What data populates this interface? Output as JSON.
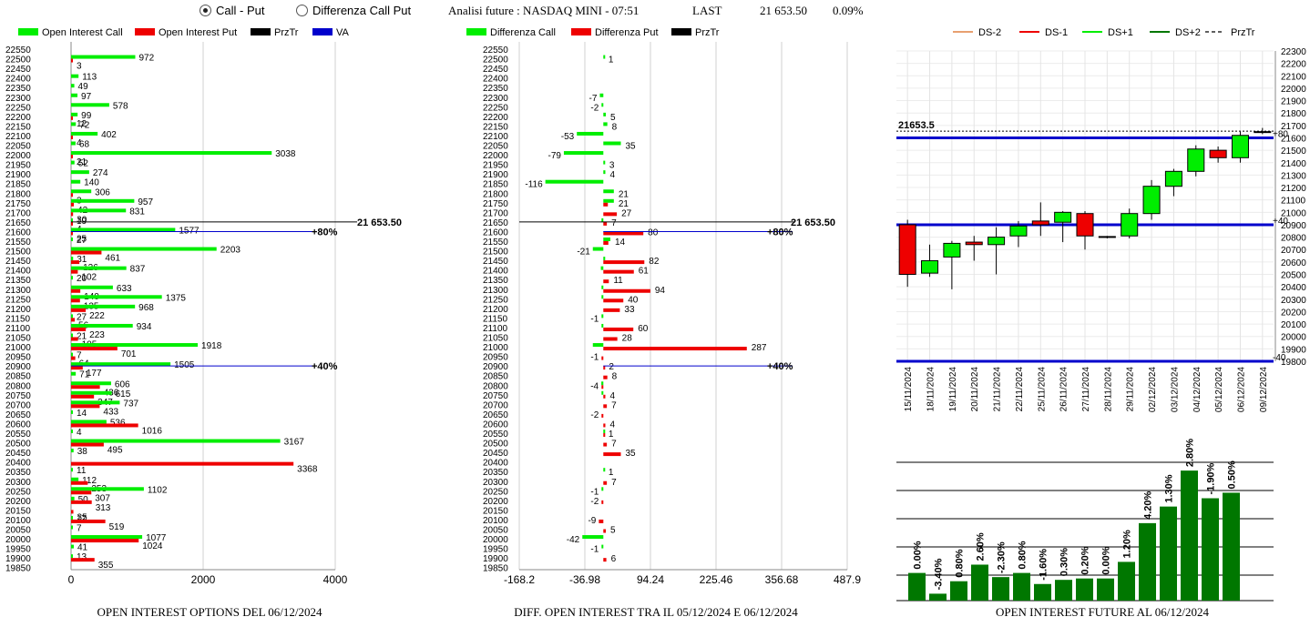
{
  "header": {
    "options": [
      {
        "label": "Call - Put",
        "selected": true
      },
      {
        "label": "Differenza Call Put",
        "selected": false
      }
    ],
    "title": "Analisi future : NASDAQ MINI - 07:51",
    "last_label": "LAST",
    "last_value": "21 653.50",
    "change": "0.09%"
  },
  "colors": {
    "call": "#00ee00",
    "put": "#ee0000",
    "prztr": "#000000",
    "va": "#0000cc",
    "dark_green": "#007700"
  },
  "chart_data": [
    {
      "type": "bar",
      "title": "OPEN INTEREST OPTIONS DEL 06/12/2024",
      "orientation": "horizontal",
      "legend": [
        "Open Interest Call",
        "Open Interest Put",
        "PrzTr",
        "VA"
      ],
      "categories": [
        22550,
        22500,
        22450,
        22400,
        22350,
        22300,
        22250,
        22200,
        22150,
        22100,
        22050,
        22000,
        21950,
        21900,
        21850,
        21800,
        21750,
        21700,
        21650,
        21600,
        21550,
        21500,
        21450,
        21400,
        21350,
        21300,
        21250,
        21200,
        21150,
        21100,
        21050,
        21000,
        20950,
        20900,
        20850,
        20800,
        20750,
        20700,
        20650,
        20600,
        20550,
        20500,
        20450,
        20400,
        20350,
        20300,
        20250,
        20200,
        20150,
        20100,
        20050,
        20000,
        19950,
        19900,
        19850
      ],
      "series": [
        {
          "name": "Open Interest Call",
          "values": [
            null,
            972,
            null,
            113,
            49,
            97,
            578,
            99,
            72,
            402,
            68,
            3038,
            52,
            274,
            140,
            306,
            957,
            831,
            19,
            1577,
            27,
            2203,
            31,
            837,
            20,
            633,
            1375,
            968,
            27,
            934,
            21,
            1918,
            7,
            1505,
            71,
            606,
            615,
            737,
            14,
            536,
            4,
            3167,
            38,
            null,
            11,
            112,
            1102,
            50,
            null,
            17,
            7,
            1077,
            41,
            13,
            null
          ]
        },
        {
          "name": "Open Interest Put",
          "values": [
            null,
            3,
            null,
            null,
            null,
            null,
            null,
            12,
            null,
            4,
            null,
            21,
            null,
            null,
            null,
            3,
            42,
            30,
            4,
            25,
            null,
            461,
            126,
            102,
            null,
            140,
            135,
            222,
            56,
            223,
            105,
            701,
            64,
            177,
            null,
            436,
            347,
            433,
            null,
            1016,
            null,
            495,
            null,
            3368,
            null,
            253,
            307,
            313,
            35,
            519,
            null,
            1024,
            null,
            355,
            null
          ]
        }
      ],
      "price_line": {
        "value": 21650,
        "label": "21 653.50"
      },
      "va_lines": [
        {
          "value": 21600,
          "label": "+80%"
        },
        {
          "value": 20900,
          "label": "+40%"
        }
      ],
      "xticks": [
        "0",
        "2000",
        "4000"
      ],
      "xlim": [
        0,
        4000
      ]
    },
    {
      "type": "bar",
      "title": "DIFF. OPEN INTEREST TRA IL 05/12/2024 E 06/12/2024",
      "orientation": "horizontal",
      "legend": [
        "Differenza Call",
        "Differenza Put",
        "PrzTr"
      ],
      "categories": [
        22550,
        22500,
        22450,
        22400,
        22350,
        22300,
        22250,
        22200,
        22150,
        22100,
        22050,
        22000,
        21950,
        21900,
        21850,
        21800,
        21750,
        21700,
        21650,
        21600,
        21550,
        21500,
        21450,
        21400,
        21350,
        21300,
        21250,
        21200,
        21150,
        21100,
        21050,
        21000,
        20950,
        20900,
        20850,
        20800,
        20750,
        20700,
        20650,
        20600,
        20550,
        20500,
        20450,
        20400,
        20350,
        20300,
        20250,
        20200,
        20150,
        20100,
        20050,
        20000,
        19950,
        19900,
        19850
      ],
      "labels": [
        null,
        "1",
        null,
        null,
        null,
        "-7",
        "-2",
        "5",
        "8",
        "-53",
        "35",
        "-79",
        "3",
        "4",
        "-116",
        "21",
        "21",
        "27",
        "7",
        "80",
        "14",
        "-21",
        "82",
        "61",
        "11",
        "94",
        "40",
        "33",
        "-1",
        "60",
        "28",
        "287",
        "-1",
        "2",
        "8",
        "-4",
        "4",
        "7",
        "-2",
        "4",
        "1",
        "7",
        "35",
        null,
        "1",
        "7",
        "-1",
        "-2",
        null,
        "-9",
        "5",
        "-42",
        "-1",
        "6",
        null
      ],
      "series": [
        {
          "name": "Differenza Call",
          "values": [
            null,
            1,
            null,
            null,
            null,
            -7,
            -2,
            5,
            8,
            -53,
            35,
            -79,
            3,
            4,
            -116,
            21,
            21,
            null,
            -2,
            null,
            14,
            -21,
            1,
            -5,
            null,
            -2,
            -2,
            null,
            -1,
            -1,
            null,
            -21,
            null,
            null,
            null,
            -4,
            -1,
            null,
            null,
            null,
            1,
            null,
            null,
            null,
            1,
            null,
            -1,
            null,
            null,
            null,
            null,
            -42,
            -1,
            null,
            null
          ]
        },
        {
          "name": "Differenza Put",
          "values": [
            null,
            null,
            null,
            null,
            null,
            null,
            null,
            null,
            null,
            null,
            null,
            null,
            null,
            null,
            null,
            null,
            9,
            27,
            7,
            80,
            10,
            null,
            82,
            61,
            11,
            94,
            40,
            33,
            null,
            60,
            28,
            287,
            -1,
            2,
            8,
            -1,
            4,
            7,
            -2,
            4,
            1,
            7,
            35,
            null,
            null,
            7,
            null,
            -2,
            null,
            -9,
            5,
            null,
            null,
            6,
            null
          ]
        }
      ],
      "price_line": {
        "value": 21650,
        "label": "21 653.50"
      },
      "va_lines": [
        {
          "value": 21600,
          "label": "+80%"
        },
        {
          "value": 20900,
          "label": "+40%"
        }
      ],
      "xticks": [
        "-168.2",
        "-36.98",
        "94.24",
        "225.46",
        "356.68",
        "487.9"
      ],
      "xlim": [
        -168.2,
        487.9
      ]
    },
    {
      "type": "candlestick",
      "legend": [
        "DS-2",
        "DS-1",
        "DS+1",
        "DS+2",
        "PrzTr"
      ],
      "legend_colors": [
        "#e8a070",
        "#ee0000",
        "#00ee00",
        "#007700",
        "#000000"
      ],
      "dates": [
        "15/11/2024",
        "18/11/2024",
        "19/11/2024",
        "20/11/2024",
        "21/11/2024",
        "22/11/2024",
        "25/11/2024",
        "26/11/2024",
        "27/11/2024",
        "28/11/2024",
        "29/11/2024",
        "02/12/2024",
        "03/12/2024",
        "04/12/2024",
        "05/12/2024",
        "06/12/2024",
        "09/12/2024"
      ],
      "candles": [
        {
          "o": 20900,
          "h": 20940,
          "l": 20400,
          "c": 20500,
          "dir": "down"
        },
        {
          "o": 20510,
          "h": 20740,
          "l": 20480,
          "c": 20610,
          "dir": "up"
        },
        {
          "o": 20640,
          "h": 20770,
          "l": 20380,
          "c": 20750,
          "dir": "up"
        },
        {
          "o": 20760,
          "h": 20810,
          "l": 20610,
          "c": 20740,
          "dir": "down"
        },
        {
          "o": 20740,
          "h": 20880,
          "l": 20500,
          "c": 20800,
          "dir": "up"
        },
        {
          "o": 20810,
          "h": 20930,
          "l": 20720,
          "c": 20890,
          "dir": "up"
        },
        {
          "o": 20930,
          "h": 21080,
          "l": 20810,
          "c": 20900,
          "dir": "down"
        },
        {
          "o": 20920,
          "h": 21010,
          "l": 20760,
          "c": 21000,
          "dir": "up"
        },
        {
          "o": 20990,
          "h": 21010,
          "l": 20700,
          "c": 20810,
          "dir": "down"
        },
        {
          "o": 20800,
          "h": 20810,
          "l": 20790,
          "c": 20805,
          "dir": "flat"
        },
        {
          "o": 20810,
          "h": 21030,
          "l": 20790,
          "c": 20990,
          "dir": "up"
        },
        {
          "o": 20990,
          "h": 21260,
          "l": 20940,
          "c": 21210,
          "dir": "up"
        },
        {
          "o": 21210,
          "h": 21350,
          "l": 21130,
          "c": 21330,
          "dir": "up"
        },
        {
          "o": 21330,
          "h": 21540,
          "l": 21290,
          "c": 21510,
          "dir": "up"
        },
        {
          "o": 21500,
          "h": 21530,
          "l": 21400,
          "c": 21440,
          "dir": "down"
        },
        {
          "o": 21440,
          "h": 21650,
          "l": 21400,
          "c": 21620,
          "dir": "up"
        },
        {
          "o": 21650,
          "h": 21680,
          "l": 21630,
          "c": 21650,
          "dir": "flat"
        }
      ],
      "ylim": [
        19800,
        22300
      ],
      "yticks": [
        19800,
        19900,
        20000,
        20100,
        20200,
        20300,
        20400,
        20500,
        20600,
        20700,
        20800,
        20900,
        21000,
        21100,
        21200,
        21300,
        21400,
        21500,
        21600,
        21700,
        21800,
        21900,
        22000,
        22100,
        22200,
        22300
      ],
      "price_line": {
        "value": 21653.5,
        "label": "21653.5"
      },
      "levels": [
        {
          "value": 21600,
          "label": "+80"
        },
        {
          "value": 20900,
          "label": "+40"
        },
        {
          "value": 19800,
          "label": "-40"
        }
      ]
    },
    {
      "type": "bar",
      "title": "OPEN INTEREST FUTURE AL 06/12/2024",
      "values": [
        0.2,
        0.05,
        0.14,
        0.26,
        0.17,
        0.2,
        0.12,
        0.15,
        0.16,
        0.16,
        0.28,
        0.56,
        0.68,
        0.94,
        0.74,
        0.78
      ],
      "labels": [
        "0.00%",
        "-3.40%",
        "0.80%",
        "2.60%",
        "-2.30%",
        "0.80%",
        "-1.60%",
        "0.30%",
        "0.20%",
        "0.00%",
        "1.20%",
        "4.20%",
        "1.30%",
        "2.80%",
        "-1.90%",
        "0.50%"
      ]
    }
  ],
  "footers": {
    "options": "OPEN INTEREST OPTIONS DEL 06/12/2024",
    "diff": "DIFF. OPEN INTEREST TRA IL 05/12/2024 E 06/12/2024",
    "future": "OPEN INTEREST FUTURE AL 06/12/2024"
  }
}
